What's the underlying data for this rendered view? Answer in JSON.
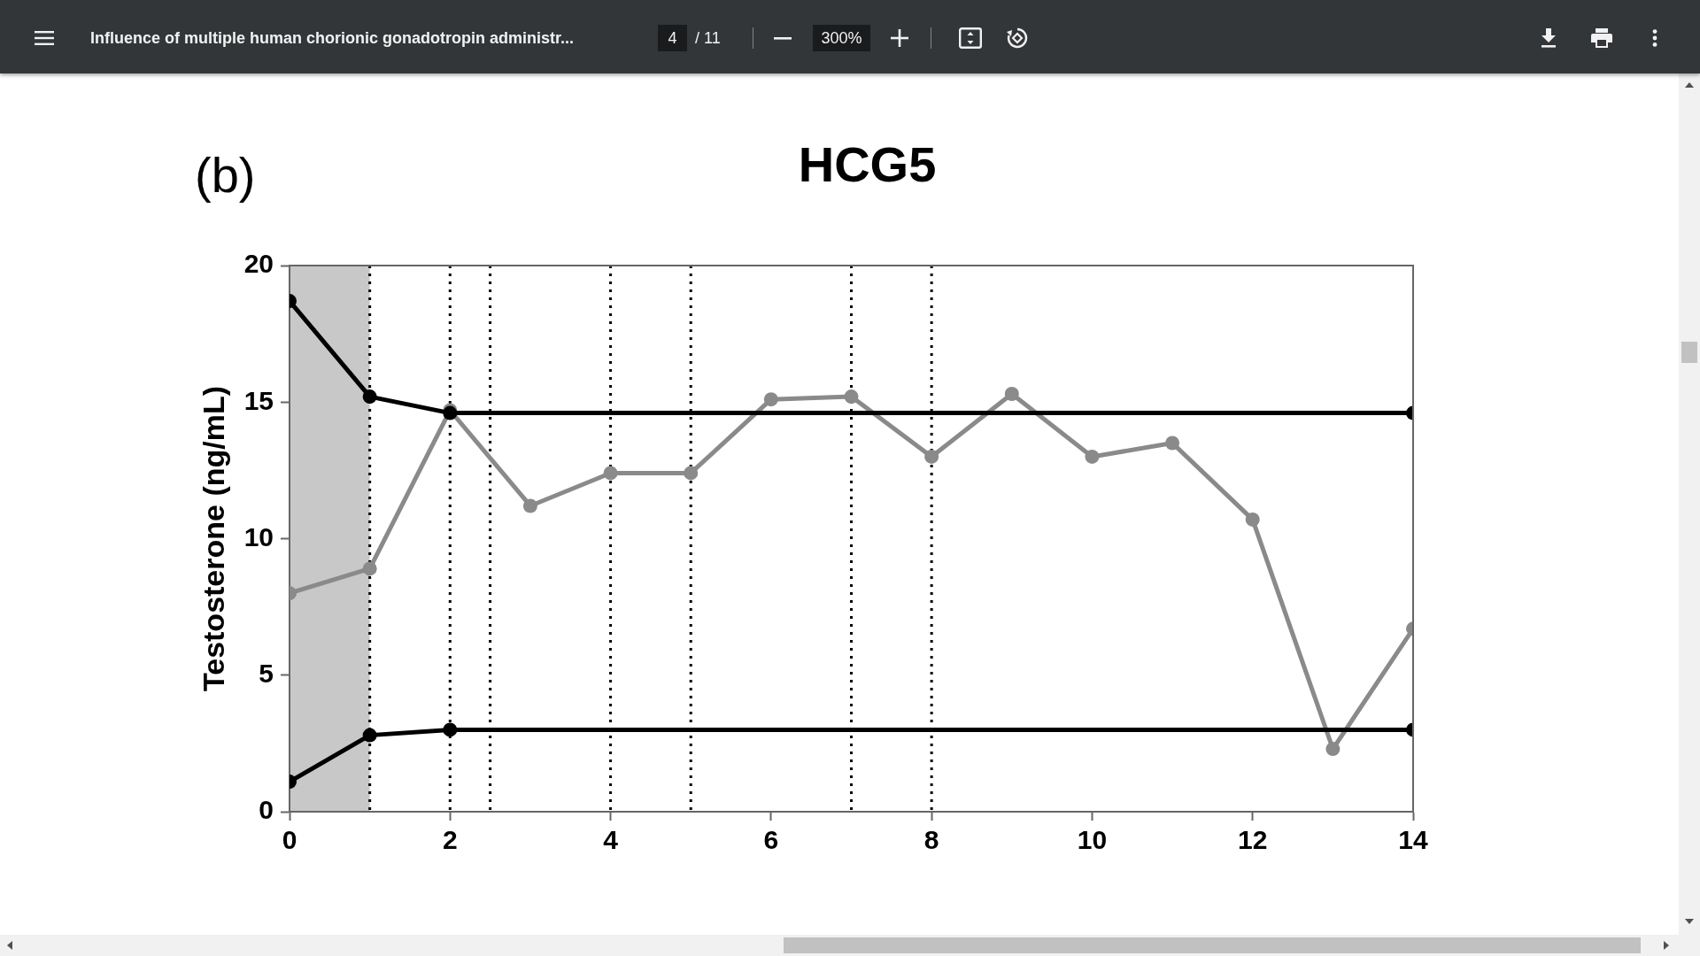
{
  "chart_data": {
    "type": "line",
    "title": "HCG5",
    "ylabel": "Testosterone (ng/mL)",
    "annotations": [
      "(b)",
      "Influence of multiple human chorionic gonadotropin administr...",
      "4",
      "/ 11",
      "300%"
    ],
    "series": [
      {
        "color": "#000000",
        "x": [
          0,
          1,
          2,
          14
        ],
        "values": [
          18.7,
          15.2,
          14.6,
          14.6
        ]
      },
      {
        "color": "#000000",
        "x": [
          0,
          1,
          2,
          14
        ],
        "values": [
          1.1,
          2.8,
          3.0,
          3.0
        ]
      },
      {
        "color": "#8a8a8a",
        "x": [
          0,
          1,
          2,
          3,
          4,
          5,
          6,
          7,
          8,
          9,
          10,
          11,
          12,
          13,
          14
        ],
        "values": [
          8.0,
          8.9,
          14.7,
          11.2,
          12.4,
          12.4,
          15.1,
          15.2,
          13.0,
          15.3,
          13.0,
          13.5,
          10.7,
          2.3,
          6.7
        ]
      }
    ],
    "xlim": [
      0,
      14
    ],
    "ylim": [
      0,
      20
    ],
    "xticks": [
      0,
      2,
      4,
      6,
      8,
      10,
      12,
      14
    ],
    "yticks": [
      0,
      5,
      10,
      15,
      20
    ],
    "grid": false,
    "marker": "circle",
    "line_style": "solid",
    "ref_lines": [
      {
        "axis": "x",
        "value": 1,
        "color": "#000000",
        "line_style": "dotted"
      },
      {
        "axis": "x",
        "value": 2,
        "color": "#000000",
        "line_style": "dotted"
      },
      {
        "axis": "x",
        "value": 2.5,
        "color": "#000000",
        "line_style": "dotted"
      },
      {
        "axis": "x",
        "value": 4,
        "color": "#000000",
        "line_style": "dotted"
      },
      {
        "axis": "x",
        "value": 5,
        "color": "#000000",
        "line_style": "dotted"
      },
      {
        "axis": "x",
        "value": 7,
        "color": "#000000",
        "line_style": "dotted"
      },
      {
        "axis": "x",
        "value": 8,
        "color": "#000000",
        "line_style": "dotted"
      }
    ],
    "bands": [
      {
        "axis": "x",
        "from": 0,
        "to": 1,
        "color": "#c8c8c8"
      }
    ]
  }
}
